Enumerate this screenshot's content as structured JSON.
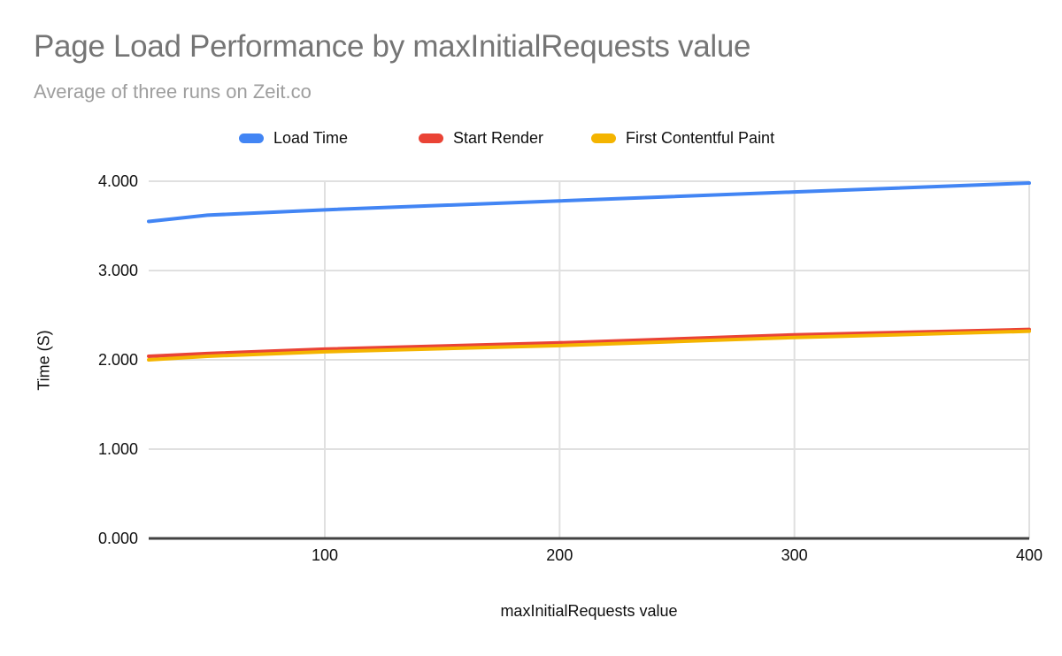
{
  "palette": {
    "background": "#ffffff",
    "title_color": "#757575",
    "subtitle_color": "#9e9e9e",
    "gridline_color": "#e0e0e0",
    "axis_line_color": "#424242",
    "tick_label_color": "#0f0f0f"
  },
  "chart_data": {
    "type": "line",
    "title": "Page Load Performance by maxInitialRequests value",
    "subtitle": "Average of three runs on Zeit.co",
    "xlabel": "maxInitialRequests value",
    "ylabel": "Time (S)",
    "legend_position": "top",
    "grid": true,
    "xlim": [
      25,
      400
    ],
    "ylim": [
      0,
      4
    ],
    "x": [
      25,
      50,
      100,
      200,
      300,
      400
    ],
    "series": [
      {
        "name": "Load Time",
        "color": "#4285f4",
        "values": [
          3.55,
          3.62,
          3.68,
          3.78,
          3.88,
          3.98
        ]
      },
      {
        "name": "Start Render",
        "color": "#ea4335",
        "values": [
          2.04,
          2.07,
          2.12,
          2.19,
          2.28,
          2.34
        ]
      },
      {
        "name": "First Contentful Paint",
        "color": "#f4b400",
        "values": [
          2.0,
          2.04,
          2.09,
          2.16,
          2.25,
          2.32
        ]
      }
    ],
    "y_ticks": [
      {
        "v": 0,
        "label": "0.000"
      },
      {
        "v": 1,
        "label": "1.000"
      },
      {
        "v": 2,
        "label": "2.000"
      },
      {
        "v": 3,
        "label": "3.000"
      },
      {
        "v": 4,
        "label": "4.000"
      }
    ],
    "x_ticks": [
      {
        "v": 100,
        "label": "100"
      },
      {
        "v": 200,
        "label": "200"
      },
      {
        "v": 300,
        "label": "300"
      },
      {
        "v": 400,
        "label": "400"
      }
    ]
  }
}
